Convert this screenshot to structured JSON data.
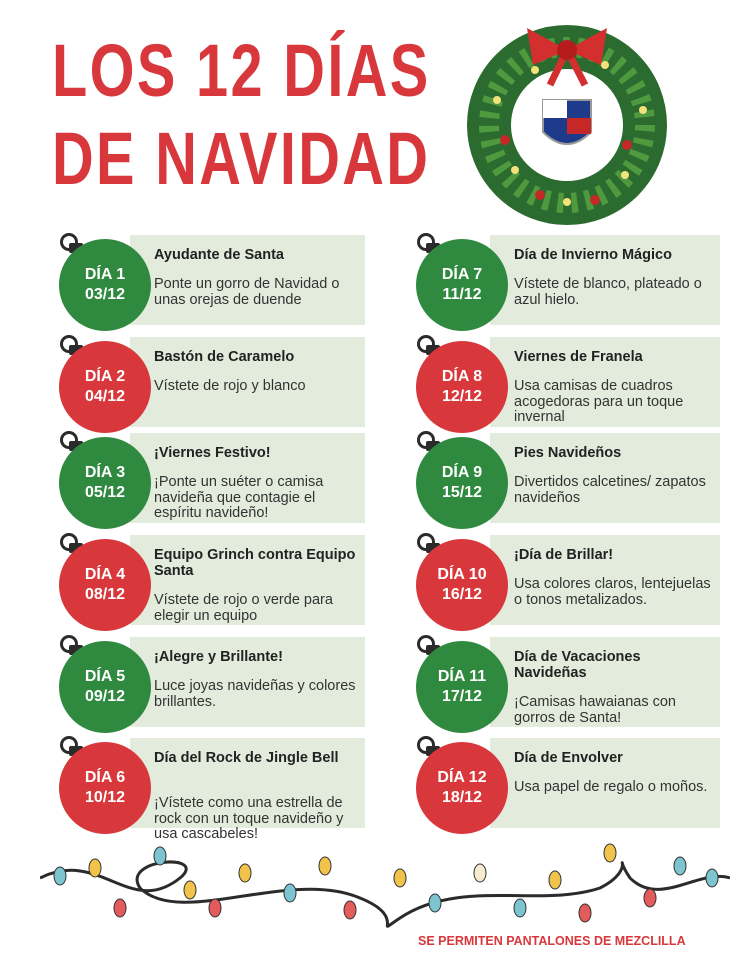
{
  "header": {
    "title": [
      "LOS 12 DÍAS",
      "DE NAVIDAD"
    ]
  },
  "days": [
    {
      "day": "DÍA 1",
      "date": "03/12",
      "title": "Ayudante de Santa",
      "text": "Ponte un gorro de Navidad o unas orejas de duende",
      "color": "#2f8a3f"
    },
    {
      "day": "DÍA 2",
      "date": "04/12",
      "title": "Bastón de Caramelo",
      "text": "Vístete de rojo y blanco",
      "color": "#d8383b"
    },
    {
      "day": "DÍA 3",
      "date": "05/12",
      "title": "¡Viernes Festivo!",
      "text": "¡Ponte un suéter o camisa navideña que contagie el espíritu navideño!",
      "color": "#2f8a3f"
    },
    {
      "day": "DÍA 4",
      "date": "08/12",
      "title": "Equipo Grinch contra Equipo Santa",
      "text": "Vístete de rojo o verde para elegir un equipo",
      "color": "#d8383b"
    },
    {
      "day": "DÍA 5",
      "date": "09/12",
      "title": "¡Alegre y Brillante!",
      "text": "Luce joyas navideñas y colores brillantes.",
      "color": "#2f8a3f"
    },
    {
      "day": "DÍA 6",
      "date": "10/12",
      "title": "Día del Rock de Jingle Bell",
      "text": "¡Vístete como una estrella de rock con un toque navideño y usa cascabeles!",
      "color": "#d8383b"
    },
    {
      "day": "DÍA 7",
      "date": "11/12",
      "title": "Día de Invierno Mágico",
      "text": "Vístete de blanco, plateado o azul hielo.",
      "color": "#2f8a3f"
    },
    {
      "day": "DÍA 8",
      "date": "12/12",
      "title": "Viernes de Franela",
      "text": "Usa camisas de cuadros acogedoras para un toque invernal",
      "color": "#d8383b"
    },
    {
      "day": "DÍA 9",
      "date": "15/12",
      "title": "Pies Navideños",
      "text": "Divertidos calcetines/ zapatos navideños",
      "color": "#2f8a3f"
    },
    {
      "day": "DÍA 10",
      "date": "16/12",
      "title": "¡Día de Brillar!",
      "text": "Usa colores claros, lentejuelas o tonos metalizados.",
      "color": "#d8383b"
    },
    {
      "day": "DÍA 11",
      "date": "17/12",
      "title": "Día de Vacaciones Navideñas",
      "text": "¡Camisas hawaianas con gorros de Santa!",
      "color": "#2f8a3f"
    },
    {
      "day": "DÍA 12",
      "date": "18/12",
      "title": "Día de Envolver",
      "text": "Usa papel de regalo o moños.",
      "color": "#d8383b"
    }
  ],
  "footer": {
    "note": "SE PERMITEN PANTALONES DE MEZCLILLA"
  }
}
